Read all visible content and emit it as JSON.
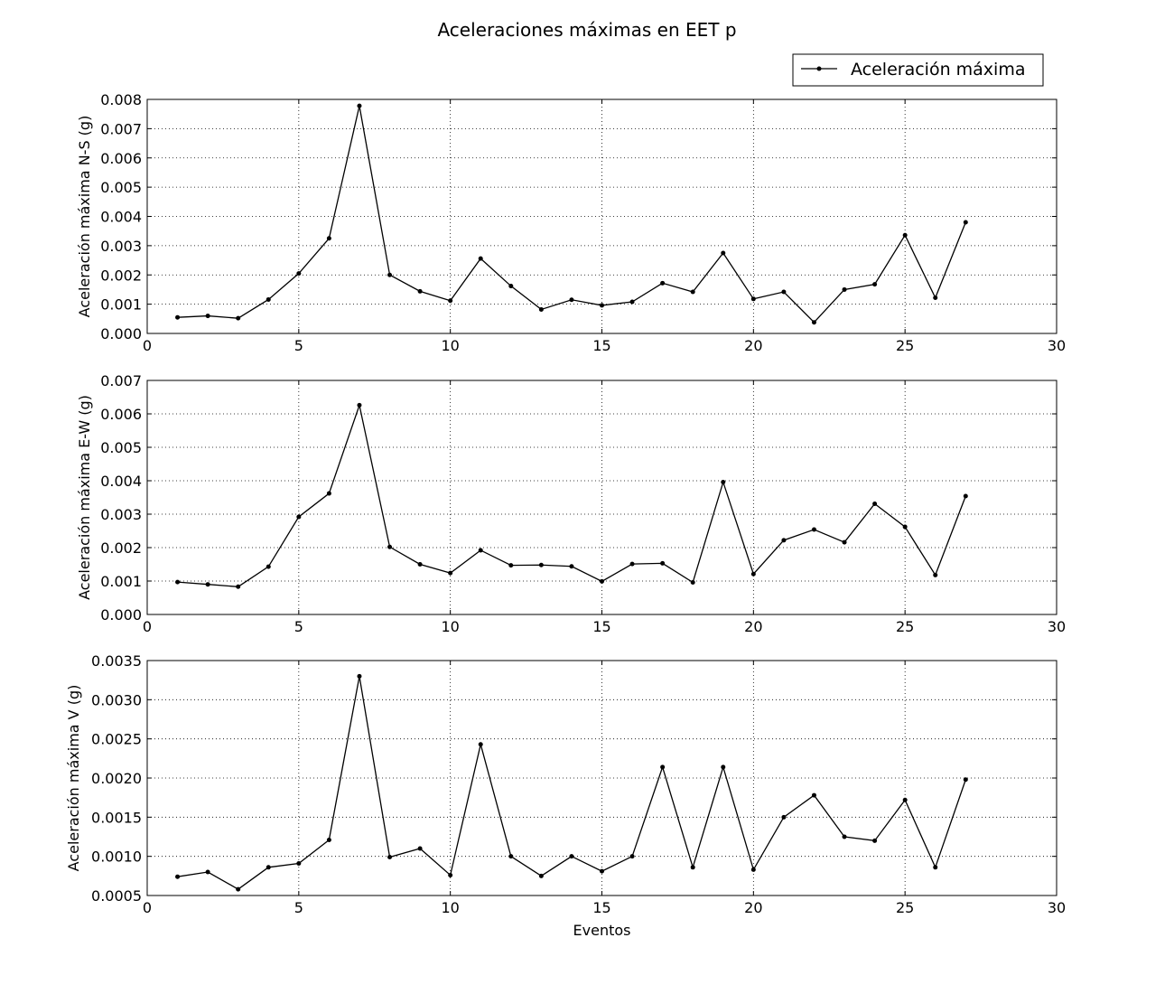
{
  "title": "Aceleraciones máximas en EET p",
  "legend": {
    "label": "Aceleración máxima",
    "placement": "top-right"
  },
  "chart_data": [
    {
      "type": "line",
      "title": "Aceleraciones máximas en EET p",
      "xlabel": "",
      "ylabel": "Aceleración máxima N-S (g)",
      "xlim": [
        0,
        30
      ],
      "ylim": [
        0.0,
        0.008
      ],
      "xticks": [
        0,
        5,
        10,
        15,
        20,
        25,
        30
      ],
      "yticks": [
        0.0,
        0.001,
        0.002,
        0.003,
        0.004,
        0.005,
        0.006,
        0.007,
        0.008
      ],
      "ytick_labels": [
        "0.000",
        "0.001",
        "0.002",
        "0.003",
        "0.004",
        "0.005",
        "0.006",
        "0.007",
        "0.008"
      ],
      "grid": true,
      "x": [
        1,
        2,
        3,
        4,
        5,
        6,
        7,
        8,
        9,
        10,
        11,
        12,
        13,
        14,
        15,
        16,
        17,
        18,
        19,
        20,
        21,
        22,
        23,
        24,
        25,
        26,
        27
      ],
      "series": [
        {
          "name": "Aceleración máxima",
          "color": "#000000",
          "values": [
            0.00055,
            0.0006,
            0.00052,
            0.00116,
            0.00205,
            0.00325,
            0.00778,
            0.002,
            0.00144,
            0.00112,
            0.00256,
            0.00162,
            0.00082,
            0.00115,
            0.00096,
            0.00108,
            0.00172,
            0.00142,
            0.00275,
            0.00118,
            0.00142,
            0.00038,
            0.0015,
            0.00168,
            0.00336,
            0.00122,
            0.0038
          ]
        }
      ]
    },
    {
      "type": "line",
      "xlabel": "",
      "ylabel": "Aceleración máxima E-W (g)",
      "xlim": [
        0,
        30
      ],
      "ylim": [
        0.0,
        0.007
      ],
      "xticks": [
        0,
        5,
        10,
        15,
        20,
        25,
        30
      ],
      "yticks": [
        0.0,
        0.001,
        0.002,
        0.003,
        0.004,
        0.005,
        0.006,
        0.007
      ],
      "ytick_labels": [
        "0.000",
        "0.001",
        "0.002",
        "0.003",
        "0.004",
        "0.005",
        "0.006",
        "0.007"
      ],
      "grid": true,
      "x": [
        1,
        2,
        3,
        4,
        5,
        6,
        7,
        8,
        9,
        10,
        11,
        12,
        13,
        14,
        15,
        16,
        17,
        18,
        19,
        20,
        21,
        22,
        23,
        24,
        25,
        26,
        27
      ],
      "series": [
        {
          "name": "Aceleración máxima",
          "color": "#000000",
          "values": [
            0.00097,
            0.0009,
            0.00083,
            0.00143,
            0.00292,
            0.00362,
            0.00626,
            0.00202,
            0.0015,
            0.00124,
            0.00192,
            0.00147,
            0.00148,
            0.00144,
            0.00099,
            0.00151,
            0.00153,
            0.00096,
            0.00396,
            0.00121,
            0.00222,
            0.00254,
            0.00216,
            0.00331,
            0.00262,
            0.00118,
            0.00354
          ]
        }
      ]
    },
    {
      "type": "line",
      "xlabel": "Eventos",
      "ylabel": "Aceleración máxima V (g)",
      "xlim": [
        0,
        30
      ],
      "ylim": [
        0.0005,
        0.0035
      ],
      "xticks": [
        0,
        5,
        10,
        15,
        20,
        25,
        30
      ],
      "yticks": [
        0.0005,
        0.001,
        0.0015,
        0.002,
        0.0025,
        0.003,
        0.0035
      ],
      "ytick_labels": [
        "0.0005",
        "0.0010",
        "0.0015",
        "0.0020",
        "0.0025",
        "0.0030",
        "0.0035"
      ],
      "grid": true,
      "x": [
        1,
        2,
        3,
        4,
        5,
        6,
        7,
        8,
        9,
        10,
        11,
        12,
        13,
        14,
        15,
        16,
        17,
        18,
        19,
        20,
        21,
        22,
        23,
        24,
        25,
        26,
        27
      ],
      "series": [
        {
          "name": "Aceleración máxima",
          "color": "#000000",
          "values": [
            0.00074,
            0.0008,
            0.00058,
            0.00086,
            0.00091,
            0.00121,
            0.0033,
            0.00099,
            0.0011,
            0.00076,
            0.00243,
            0.001,
            0.00075,
            0.001,
            0.00081,
            0.001,
            0.00214,
            0.00086,
            0.00214,
            0.00083,
            0.0015,
            0.00178,
            0.00125,
            0.0012,
            0.00172,
            0.00086,
            0.00198
          ]
        }
      ]
    }
  ]
}
